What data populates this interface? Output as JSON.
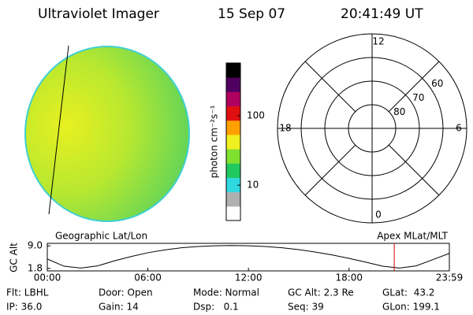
{
  "header": {
    "title": "Ultraviolet Imager",
    "date": "15 Sep 07",
    "time": "20:41:49 UT"
  },
  "colorbar": {
    "label": "photon cm⁻²s⁻¹",
    "scale": "log",
    "lim": [
      3.1,
      575
    ],
    "ticks": [
      10,
      100
    ],
    "colors": [
      "#ffffff",
      "#b0b0b0",
      "#30d8e0",
      "#20c860",
      "#80e030",
      "#f0f020",
      "#ffa000",
      "#e01010",
      "#b00060",
      "#500060",
      "#000000"
    ]
  },
  "polar": {
    "rlim": [
      90,
      50
    ],
    "rings": [
      80,
      70,
      60
    ],
    "clock": [
      12,
      18,
      6,
      0
    ]
  },
  "orbit": {
    "title_left": "Geographic Lat/Lon",
    "title_right": "Apex MLat/MLT",
    "ylabel": "GC Alt",
    "ylim": [
      1.0,
      9.8
    ],
    "yticks": [
      1.8,
      {
        "value": 9.0,
        "label": "9.0"
      }
    ],
    "xlim": [
      0,
      23.983
    ],
    "xticks": [
      {
        "value": 0,
        "label": "00:00"
      },
      {
        "value": 6,
        "label": "06:00"
      },
      {
        "value": 12,
        "label": "12:00"
      },
      {
        "value": 18,
        "label": "18:00"
      },
      {
        "value": 23.983,
        "label": "23:59"
      }
    ],
    "x": [
      0,
      1,
      2,
      3,
      4,
      5,
      6,
      7,
      8,
      9,
      10,
      11,
      12,
      13,
      14,
      15,
      16,
      17,
      18,
      19,
      20,
      21,
      22,
      23,
      23.983
    ],
    "values": [
      4.8,
      2.5,
      1.9,
      2.6,
      4.2,
      5.6,
      6.8,
      7.7,
      8.4,
      8.8,
      9.0,
      9.1,
      9.0,
      8.8,
      8.4,
      7.8,
      7.0,
      6.1,
      5.0,
      3.8,
      2.5,
      1.9,
      2.6,
      4.6,
      6.6
    ],
    "marker": 20.697,
    "marker_color": "#d00000"
  },
  "footer": [
    [
      "Flt: LBHL",
      "IP: 36.0"
    ],
    [
      "Door: Open",
      "Gain: 14"
    ],
    [
      "Mode: Normal",
      "Dsp:   0.1"
    ],
    [
      "GC Alt: 2.3 Re",
      "Seq: 39"
    ],
    [
      "GLat:  43.2",
      "GLon: 199.1"
    ]
  ]
}
